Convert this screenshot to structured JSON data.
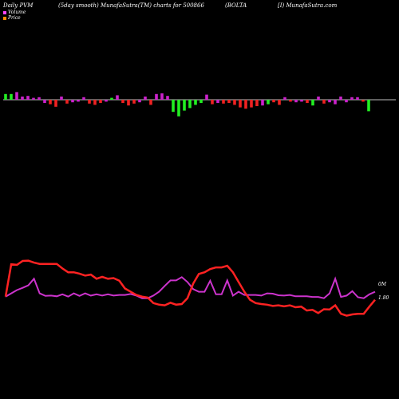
{
  "header": {
    "period": "Daily PVM",
    "desc": "(5day smooth) MunafaSutra(TM) charts for 500866",
    "symbol": "(BOLTA",
    "site": "[I) MunafaSutra.com"
  },
  "legend": {
    "volume_label": "Volume",
    "price_label": "Price",
    "volume_color": "#ff44ff",
    "price_color": "#ff8c00"
  },
  "colors": {
    "up": "#22ee22",
    "down": "#ee2222",
    "neutral": "#cc22cc",
    "price": "#ff2222",
    "volume": "#cc33cc",
    "baseline": "#ffffff"
  },
  "axis_labels": {
    "volume_right": "0M",
    "price_right": "1.80"
  },
  "chart_data": [
    {
      "type": "bar",
      "title": "",
      "y_unit": "relative volume change",
      "categories": [
        1,
        2,
        3,
        4,
        5,
        6,
        7,
        8,
        9,
        10,
        11,
        12,
        13,
        14,
        15,
        16,
        17,
        18,
        19,
        20,
        21,
        22,
        23,
        24,
        25,
        26,
        27,
        28,
        29,
        30,
        31,
        32,
        33,
        34,
        35,
        36,
        37,
        38,
        39,
        40,
        41,
        42,
        43,
        44,
        45,
        46,
        47,
        48,
        49,
        50,
        51,
        52,
        53,
        54,
        55,
        56,
        57,
        58,
        59,
        60,
        61,
        62,
        63,
        64,
        65,
        66
      ],
      "values": [
        0.9,
        0.9,
        1.2,
        0.5,
        0.6,
        0.3,
        0.4,
        -0.5,
        -0.7,
        -1.1,
        0.5,
        -0.6,
        -0.4,
        -0.3,
        0.4,
        -0.6,
        -0.8,
        -0.5,
        -0.3,
        0.3,
        0.7,
        -0.5,
        -0.9,
        -0.6,
        -0.4,
        0.5,
        -0.8,
        0.9,
        1.0,
        0.6,
        -1.9,
        -2.6,
        -1.7,
        -1.3,
        -0.8,
        -0.5,
        0.8,
        -0.7,
        -0.5,
        -0.6,
        -0.5,
        -0.8,
        -1.2,
        -1.4,
        -1.2,
        -1.0,
        -0.9,
        -0.7,
        -0.4,
        -0.8,
        0.4,
        -0.3,
        -0.4,
        -0.3,
        -0.5,
        -0.9,
        0.5,
        -0.6,
        -0.4,
        -0.7,
        0.5,
        -0.4,
        0.4,
        0.4,
        -0.3,
        -1.8
      ],
      "colors": [
        "g",
        "g",
        "m",
        "m",
        "m",
        "m",
        "m",
        "m",
        "r",
        "r",
        "m",
        "r",
        "m",
        "m",
        "m",
        "r",
        "r",
        "r",
        "m",
        "g",
        "m",
        "r",
        "r",
        "r",
        "m",
        "m",
        "r",
        "m",
        "m",
        "m",
        "g",
        "g",
        "g",
        "g",
        "g",
        "g",
        "m",
        "r",
        "m",
        "r",
        "r",
        "r",
        "r",
        "r",
        "r",
        "r",
        "m",
        "g",
        "r",
        "r",
        "m",
        "r",
        "m",
        "m",
        "r",
        "g",
        "m",
        "r",
        "m",
        "m",
        "m",
        "m",
        "m",
        "m",
        "r",
        "g"
      ]
    },
    {
      "type": "line",
      "series": [
        {
          "name": "Price",
          "values": [
            1.95,
            2.95,
            2.93,
            3.05,
            3.06,
            3.0,
            2.96,
            2.96,
            2.96,
            2.96,
            2.82,
            2.7,
            2.7,
            2.66,
            2.6,
            2.63,
            2.5,
            2.56,
            2.5,
            2.52,
            2.44,
            2.2,
            2.1,
            2.0,
            1.95,
            1.92,
            1.75,
            1.7,
            1.68,
            1.76,
            1.7,
            1.72,
            1.9,
            2.35,
            2.65,
            2.7,
            2.8,
            2.85,
            2.85,
            2.9,
            2.7,
            2.4,
            2.1,
            1.85,
            1.75,
            1.72,
            1.7,
            1.66,
            1.68,
            1.65,
            1.68,
            1.62,
            1.64,
            1.52,
            1.54,
            1.44,
            1.56,
            1.55,
            1.68,
            1.42,
            1.36,
            1.4,
            1.42,
            1.42,
            1.64,
            1.85
          ]
        },
        {
          "name": "Volume",
          "values": [
            1.95,
            2.05,
            2.15,
            2.22,
            2.3,
            2.5,
            2.05,
            1.97,
            1.98,
            1.96,
            2.02,
            1.95,
            2.05,
            1.97,
            2.05,
            1.98,
            2.02,
            1.98,
            2.02,
            1.98,
            2.0,
            2.0,
            2.03,
            1.98,
            1.9,
            1.9,
            1.98,
            2.1,
            2.28,
            2.45,
            2.45,
            2.55,
            2.4,
            2.18,
            2.1,
            2.1,
            2.44,
            2.02,
            2.02,
            2.45,
            1.98,
            2.1,
            2.0,
            2.0,
            2.0,
            1.98,
            2.05,
            2.04,
            1.99,
            1.98,
            2.0,
            1.96,
            1.96,
            1.96,
            1.94,
            1.94,
            1.9,
            2.05,
            2.5,
            1.94,
            1.98,
            2.12,
            1.93,
            1.9,
            2.02,
            2.1
          ]
        }
      ]
    }
  ]
}
